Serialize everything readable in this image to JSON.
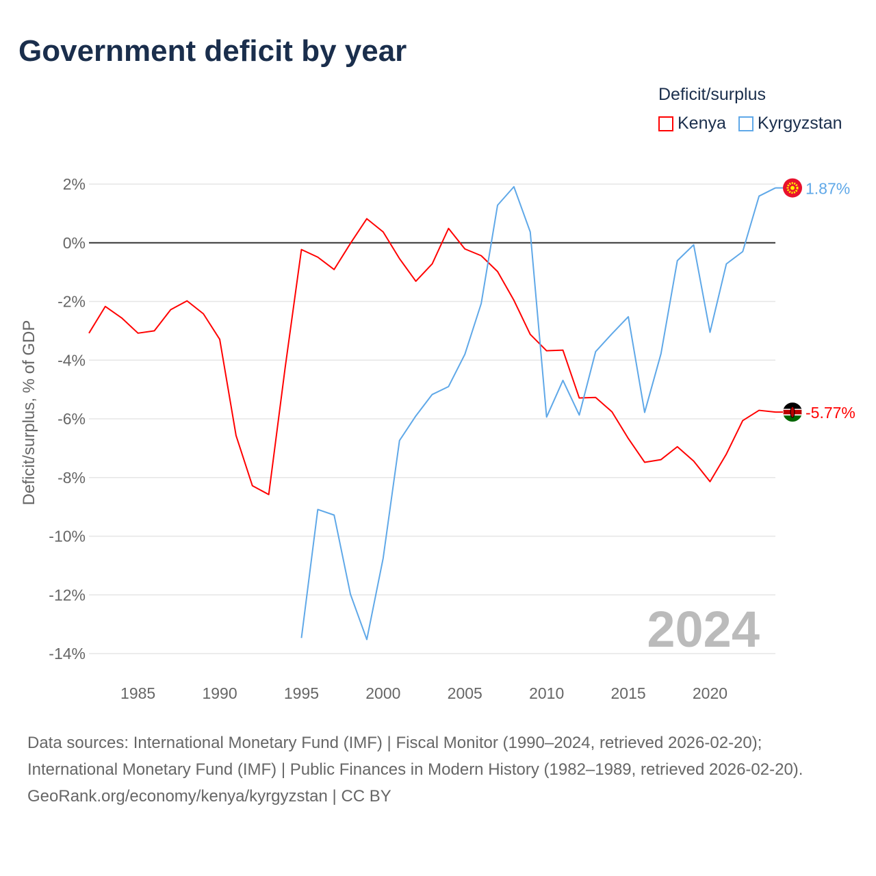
{
  "chart_data": {
    "type": "line",
    "title": "Government deficit by year",
    "ylabel": "Deficit/surplus, % of GDP",
    "xlabel": "",
    "xlim": [
      1982,
      2024
    ],
    "ylim": [
      -14,
      2
    ],
    "yticks": [
      2,
      0,
      -2,
      -4,
      -6,
      -8,
      -10,
      -12,
      -14
    ],
    "ytick_labels": [
      "2%",
      "0%",
      "-2%",
      "-4%",
      "-6%",
      "-8%",
      "-10%",
      "-12%",
      "-14%"
    ],
    "xticks": [
      1985,
      1990,
      1995,
      2000,
      2005,
      2010,
      2015,
      2020
    ],
    "xtick_labels": [
      "1985",
      "1990",
      "1995",
      "2000",
      "2005",
      "2010",
      "2015",
      "2020"
    ],
    "grid": true,
    "legend_title": "Deficit/surplus",
    "legend_position": "top-right",
    "year_watermark": "2024",
    "series": [
      {
        "name": "Kenya",
        "color": "#ff0000",
        "end_label": "-5.77%",
        "x": [
          1982,
          1983,
          1984,
          1985,
          1986,
          1987,
          1988,
          1989,
          1990,
          1991,
          1992,
          1993,
          1994,
          1995,
          1996,
          1997,
          1998,
          1999,
          2000,
          2001,
          2002,
          2003,
          2004,
          2005,
          2006,
          2007,
          2008,
          2009,
          2010,
          2011,
          2012,
          2013,
          2014,
          2015,
          2016,
          2017,
          2018,
          2019,
          2020,
          2021,
          2022,
          2023,
          2024
        ],
        "values": [
          -3.08,
          -2.17,
          -2.56,
          -3.08,
          -3.0,
          -2.28,
          -1.98,
          -2.42,
          -3.29,
          -6.57,
          -8.28,
          -8.58,
          -4.27,
          -0.23,
          -0.49,
          -0.91,
          -0.02,
          0.82,
          0.37,
          -0.54,
          -1.31,
          -0.72,
          0.49,
          -0.21,
          -0.44,
          -0.98,
          -1.96,
          -3.12,
          -3.68,
          -3.66,
          -5.29,
          -5.27,
          -5.76,
          -6.67,
          -7.48,
          -7.39,
          -6.95,
          -7.44,
          -8.14,
          -7.2,
          -6.06,
          -5.71,
          -5.77
        ]
      },
      {
        "name": "Kyrgyzstan",
        "color": "#5fa8e8",
        "end_label": "1.87%",
        "x": [
          1995,
          1996,
          1997,
          1998,
          1999,
          2000,
          2001,
          2002,
          2003,
          2004,
          2005,
          2006,
          2007,
          2008,
          2009,
          2010,
          2011,
          2012,
          2013,
          2014,
          2015,
          2016,
          2017,
          2018,
          2019,
          2020,
          2021,
          2022,
          2023,
          2024
        ],
        "values": [
          -13.47,
          -9.09,
          -9.28,
          -11.98,
          -13.52,
          -10.75,
          -6.74,
          -5.9,
          -5.17,
          -4.9,
          -3.8,
          -2.07,
          1.28,
          1.91,
          0.37,
          -5.94,
          -4.69,
          -5.87,
          -3.71,
          -3.1,
          -2.52,
          -5.78,
          -3.78,
          -0.61,
          -0.07,
          -3.05,
          -0.72,
          -0.3,
          1.59,
          1.87
        ]
      }
    ]
  },
  "footer": {
    "sources": "Data sources: International Monetary Fund (IMF) | Fiscal Monitor (1990–2024, retrieved 2026-02-20); International Monetary Fund (IMF) | Public Finances in Modern History (1982–1989, retrieved 2026-02-20).",
    "credit": "GeoRank.org/economy/kenya/kyrgyzstan | CC BY"
  }
}
